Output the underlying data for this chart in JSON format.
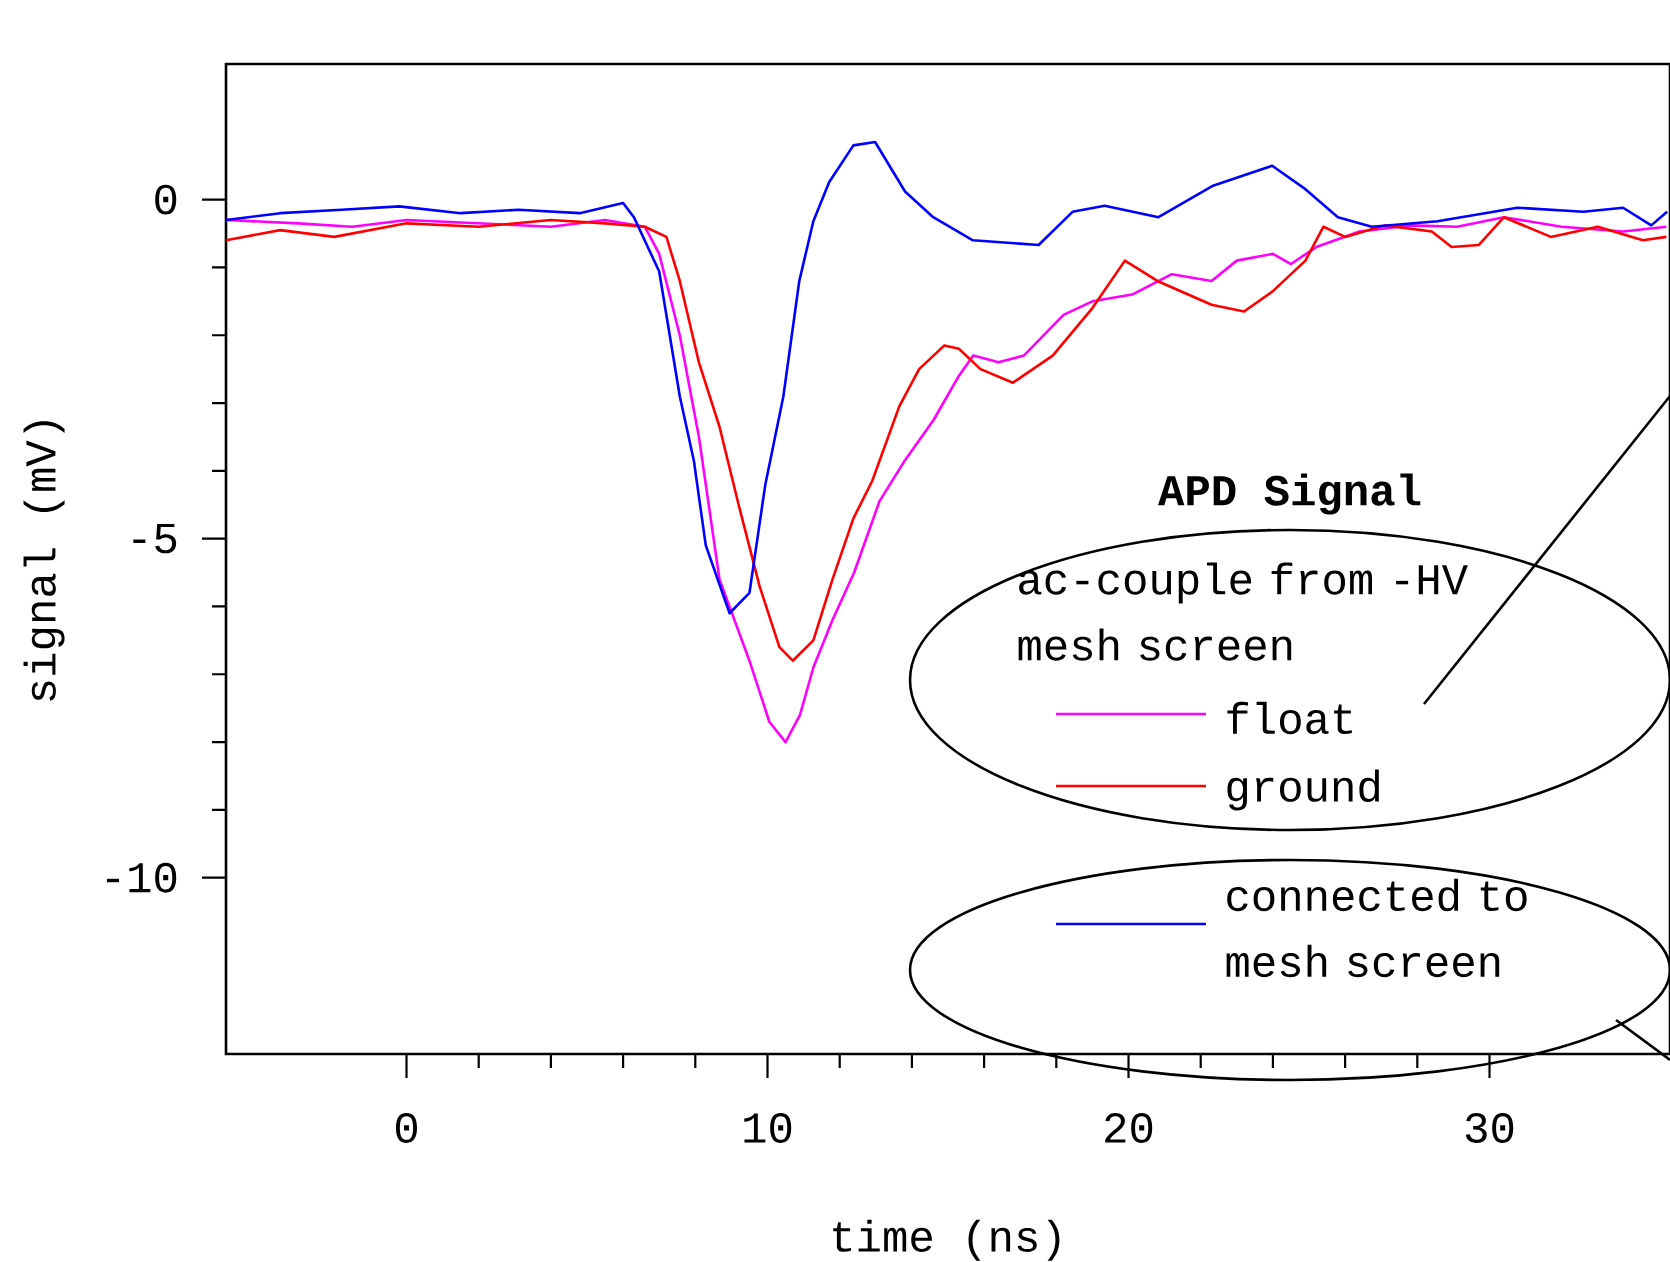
{
  "chart_data": {
    "type": "line",
    "xlabel": "time (ns)",
    "ylabel": "signal (mV)",
    "legend_title": "APD Signal",
    "annotations": [
      "ac-couple from -HV mesh screen"
    ],
    "xlim": [
      -5,
      35
    ],
    "ylim": [
      -12.6,
      2
    ],
    "xticks": [
      0,
      10,
      20,
      30
    ],
    "yticks": [
      0,
      -5,
      -10
    ],
    "legend": "bottom right",
    "marker": "none",
    "line_style": "solid",
    "series": [
      {
        "name": "float",
        "color": "#ff00ff",
        "x": [
          -5,
          -3,
          -1.5,
          0,
          2,
          4,
          5.5,
          6.6,
          7.0,
          7.57,
          8.1,
          8.67,
          9.5,
          10.05,
          10.5,
          10.9,
          11.27,
          11.8,
          12.4,
          13.1,
          13.8,
          14.6,
          15.3,
          15.7,
          16.4,
          17.1,
          18.2,
          19.0,
          20.1,
          21.2,
          22.3,
          23.0,
          24.0,
          24.5,
          25.2,
          26.4,
          27.8,
          29.1,
          30.4,
          32.0,
          33.7,
          34.9
        ],
        "values": [
          -0.3,
          -0.35,
          -0.4,
          -0.3,
          -0.35,
          -0.4,
          -0.3,
          -0.4,
          -0.8,
          -2.0,
          -3.5,
          -5.6,
          -6.8,
          -7.7,
          -8.0,
          -7.6,
          -6.9,
          -6.2,
          -5.5,
          -4.45,
          -3.85,
          -3.25,
          -2.6,
          -2.3,
          -2.4,
          -2.3,
          -1.7,
          -1.5,
          -1.4,
          -1.1,
          -1.2,
          -0.9,
          -0.8,
          -0.95,
          -0.7,
          -0.47,
          -0.38,
          -0.4,
          -0.26,
          -0.4,
          -0.47,
          -0.4
        ]
      },
      {
        "name": "ground",
        "color": "#ff0000",
        "x": [
          -5,
          -3.5,
          -2,
          0,
          2,
          4,
          5.5,
          6.6,
          7.2,
          7.57,
          8.1,
          8.67,
          9.2,
          9.78,
          10.33,
          10.7,
          11.27,
          11.8,
          12.38,
          12.9,
          13.65,
          14.2,
          14.9,
          15.3,
          15.9,
          16.8,
          17.9,
          19.0,
          19.9,
          20.8,
          22.3,
          23.2,
          24.0,
          24.9,
          25.4,
          26.0,
          27.1,
          28.4,
          28.95,
          29.7,
          30.4,
          31.7,
          33.0,
          34.25,
          34.9
        ],
        "values": [
          -0.6,
          -0.45,
          -0.55,
          -0.35,
          -0.4,
          -0.3,
          -0.35,
          -0.4,
          -0.55,
          -1.2,
          -2.4,
          -3.35,
          -4.5,
          -5.7,
          -6.6,
          -6.8,
          -6.5,
          -5.6,
          -4.7,
          -4.15,
          -3.05,
          -2.5,
          -2.15,
          -2.2,
          -2.5,
          -2.7,
          -2.3,
          -1.6,
          -0.9,
          -1.2,
          -1.55,
          -1.65,
          -1.35,
          -0.9,
          -0.4,
          -0.55,
          -0.38,
          -0.47,
          -0.7,
          -0.67,
          -0.26,
          -0.55,
          -0.4,
          -0.6,
          -0.55
        ]
      },
      {
        "name": "connected to mesh screen",
        "color": "#0000ff",
        "x": [
          -5,
          -3.5,
          -1.8,
          -0.2,
          1.5,
          3.1,
          4.8,
          6.0,
          6.3,
          7.0,
          7.57,
          7.96,
          8.29,
          8.95,
          9.5,
          9.94,
          10.44,
          10.88,
          11.27,
          11.71,
          12.38,
          12.98,
          13.81,
          14.59,
          15.69,
          17.51,
          18.45,
          19.34,
          20.83,
          22.32,
          23.98,
          24.86,
          25.8,
          26.74,
          28.56,
          30.77,
          32.6,
          33.7,
          34.48,
          34.92
        ],
        "values": [
          -0.3,
          -0.2,
          -0.15,
          -0.1,
          -0.2,
          -0.15,
          -0.2,
          -0.05,
          -0.26,
          -1.06,
          -2.9,
          -3.85,
          -5.1,
          -6.1,
          -5.8,
          -4.2,
          -2.9,
          -1.2,
          -0.32,
          0.26,
          0.8,
          0.85,
          0.12,
          -0.26,
          -0.6,
          -0.67,
          -0.18,
          -0.09,
          -0.26,
          0.2,
          0.5,
          0.17,
          -0.26,
          -0.4,
          -0.32,
          -0.12,
          -0.18,
          -0.12,
          -0.38,
          -0.18
        ]
      }
    ]
  }
}
